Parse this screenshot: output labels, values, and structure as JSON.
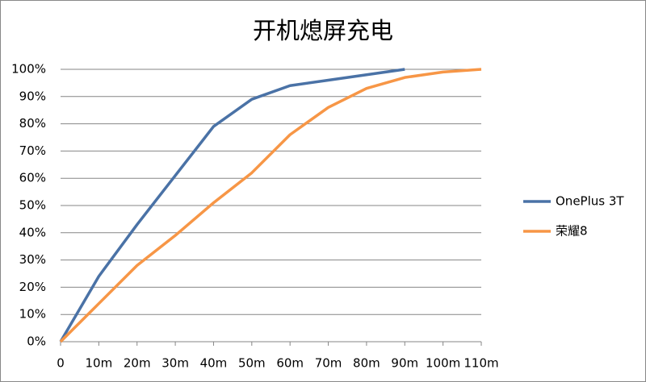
{
  "chart_data": {
    "type": "line",
    "title": "开机熄屏充电",
    "categories": [
      "0",
      "10m",
      "20m",
      "30m",
      "40m",
      "50m",
      "60m",
      "70m",
      "80m",
      "90m",
      "100m",
      "110m"
    ],
    "series": [
      {
        "name": "OnePlus 3T",
        "color": "#4a72a6",
        "values": [
          0,
          24,
          43,
          61,
          79,
          89,
          94,
          96,
          98,
          100,
          null,
          null
        ]
      },
      {
        "name": "荣耀8",
        "color": "#f79646",
        "values": [
          0,
          14,
          28,
          39,
          51,
          62,
          76,
          86,
          93,
          97,
          99,
          100
        ]
      }
    ],
    "ylim": [
      0,
      100
    ],
    "yticks": [
      {
        "value": 0,
        "label": "0%"
      },
      {
        "value": 10,
        "label": "10%"
      },
      {
        "value": 20,
        "label": "20%"
      },
      {
        "value": 30,
        "label": "30%"
      },
      {
        "value": 40,
        "label": "40%"
      },
      {
        "value": 50,
        "label": "50%"
      },
      {
        "value": 60,
        "label": "60%"
      },
      {
        "value": 70,
        "label": "70%"
      },
      {
        "value": 80,
        "label": "80%"
      },
      {
        "value": 90,
        "label": "90%"
      },
      {
        "value": 100,
        "label": "100%"
      }
    ],
    "grid": true,
    "legend": "right"
  }
}
